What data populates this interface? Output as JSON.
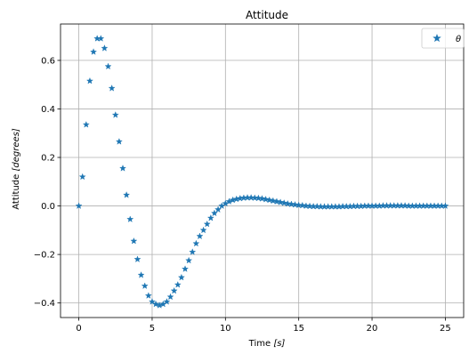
{
  "chart_data": {
    "type": "scatter",
    "title": "Attitude",
    "xlabel_text": "Time ",
    "xlabel_unit": "[s]",
    "ylabel_text": "Attitude ",
    "ylabel_unit": "[degrees]",
    "xlim": [
      -1.25,
      26.25
    ],
    "ylim": [
      -0.46,
      0.75
    ],
    "xticks": [
      0,
      5,
      10,
      15,
      20,
      25
    ],
    "xtick_labels": [
      "0",
      "5",
      "10",
      "15",
      "20",
      "25"
    ],
    "yticks": [
      -0.4,
      -0.2,
      0.0,
      0.2,
      0.4,
      0.6
    ],
    "ytick_labels": [
      "−0.4",
      "−0.2",
      "0.0",
      "0.2",
      "0.4",
      "0.6"
    ],
    "grid": true,
    "legend_position": "top-right",
    "marker": "star",
    "series": [
      {
        "name": "θ",
        "color": "#1f77b4",
        "x": [
          0.0,
          0.25,
          0.5,
          0.75,
          1.0,
          1.25,
          1.5,
          1.75,
          2.0,
          2.25,
          2.5,
          2.75,
          3.0,
          3.25,
          3.5,
          3.75,
          4.0,
          4.25,
          4.5,
          4.75,
          5.0,
          5.25,
          5.5,
          5.75,
          6.0,
          6.25,
          6.5,
          6.75,
          7.0,
          7.25,
          7.5,
          7.75,
          8.0,
          8.25,
          8.5,
          8.75,
          9.0,
          9.25,
          9.5,
          9.75,
          10.0,
          10.25,
          10.5,
          10.75,
          11.0,
          11.25,
          11.5,
          11.75,
          12.0,
          12.25,
          12.5,
          12.75,
          13.0,
          13.25,
          13.5,
          13.75,
          14.0,
          14.25,
          14.5,
          14.75,
          15.0,
          15.25,
          15.5,
          15.75,
          16.0,
          16.25,
          16.5,
          16.75,
          17.0,
          17.25,
          17.5,
          17.75,
          18.0,
          18.25,
          18.5,
          18.75,
          19.0,
          19.25,
          19.5,
          19.75,
          20.0,
          20.25,
          20.5,
          20.75,
          21.0,
          21.25,
          21.5,
          21.75,
          22.0,
          22.25,
          22.5,
          22.75,
          23.0,
          23.25,
          23.5,
          23.75,
          24.0,
          24.25,
          24.5,
          24.75,
          25.0
        ],
        "y": [
          0.0,
          0.12,
          0.335,
          0.515,
          0.635,
          0.69,
          0.69,
          0.65,
          0.575,
          0.485,
          0.375,
          0.265,
          0.155,
          0.045,
          -0.055,
          -0.145,
          -0.22,
          -0.285,
          -0.33,
          -0.37,
          -0.395,
          -0.405,
          -0.41,
          -0.405,
          -0.395,
          -0.375,
          -0.35,
          -0.325,
          -0.295,
          -0.26,
          -0.225,
          -0.19,
          -0.155,
          -0.125,
          -0.1,
          -0.075,
          -0.05,
          -0.03,
          -0.015,
          0.0,
          0.01,
          0.018,
          0.024,
          0.028,
          0.031,
          0.033,
          0.034,
          0.034,
          0.033,
          0.032,
          0.03,
          0.027,
          0.024,
          0.021,
          0.018,
          0.015,
          0.012,
          0.009,
          0.007,
          0.005,
          0.003,
          0.002,
          0.0,
          -0.001,
          -0.002,
          -0.002,
          -0.003,
          -0.003,
          -0.003,
          -0.003,
          -0.003,
          -0.003,
          -0.002,
          -0.002,
          -0.002,
          -0.001,
          -0.001,
          -0.001,
          0.0,
          0.0,
          0.0,
          0.0,
          0.0,
          0.001,
          0.001,
          0.001,
          0.001,
          0.001,
          0.001,
          0.001,
          0.0,
          0.0,
          0.0,
          0.0,
          0.0,
          0.0,
          0.0,
          0.0,
          0.0,
          0.0,
          0.0
        ]
      }
    ]
  }
}
